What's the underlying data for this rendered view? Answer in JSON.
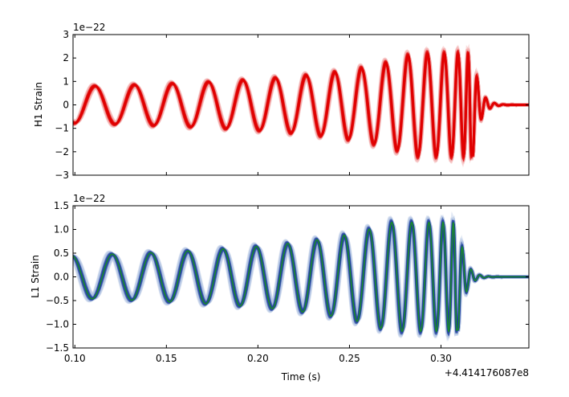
{
  "chart_data": [
    {
      "type": "line",
      "panel": "top",
      "ylabel": "H1 Strain",
      "xlabel": "",
      "y_exponent_label": "1e−22",
      "xlim": [
        0.099,
        0.348
      ],
      "ylim": [
        -3,
        3
      ],
      "yticks": [
        -3,
        -2,
        -1,
        0,
        1,
        2,
        3
      ],
      "ytick_labels": [
        "−3",
        "−2",
        "−1",
        "0",
        "1",
        "2",
        "3"
      ],
      "grid": false,
      "colors": {
        "band": "#f0a0a0",
        "core": "#e00000",
        "median": "#e00000"
      },
      "waveform": {
        "start": 0.099,
        "merger": 0.3175,
        "early_amplitude": 0.78,
        "peak_amplitude": 2.2,
        "early_period": 0.0225,
        "merger_period": 0.0048,
        "band_spread": 0.12
      }
    },
    {
      "type": "line",
      "panel": "bottom",
      "ylabel": "L1 Strain",
      "xlabel": "Time (s)",
      "y_exponent_label": "1e−22",
      "x_offset_label": "+4.414176087e8",
      "xlim": [
        0.099,
        0.348
      ],
      "ylim": [
        -1.5,
        1.5
      ],
      "xticks": [
        0.1,
        0.15,
        0.2,
        0.25,
        0.3
      ],
      "xtick_labels": [
        "0.10",
        "0.15",
        "0.20",
        "0.25",
        "0.30"
      ],
      "yticks": [
        -1.5,
        -1.0,
        -0.5,
        0.0,
        0.5,
        1.0,
        1.5
      ],
      "ytick_labels": [
        "−1.5",
        "−1.0",
        "−0.5",
        "0.0",
        "0.5",
        "1.0",
        "1.5"
      ],
      "grid": false,
      "colors": {
        "band": "#a8bce0",
        "core": "#1a3a9a",
        "median": "#1a8a2a"
      },
      "waveform": {
        "start": 0.099,
        "merger": 0.3095,
        "early_amplitude": 0.45,
        "peak_amplitude": 1.15,
        "early_period": 0.0225,
        "merger_period": 0.0048,
        "band_spread": 0.22
      }
    }
  ]
}
